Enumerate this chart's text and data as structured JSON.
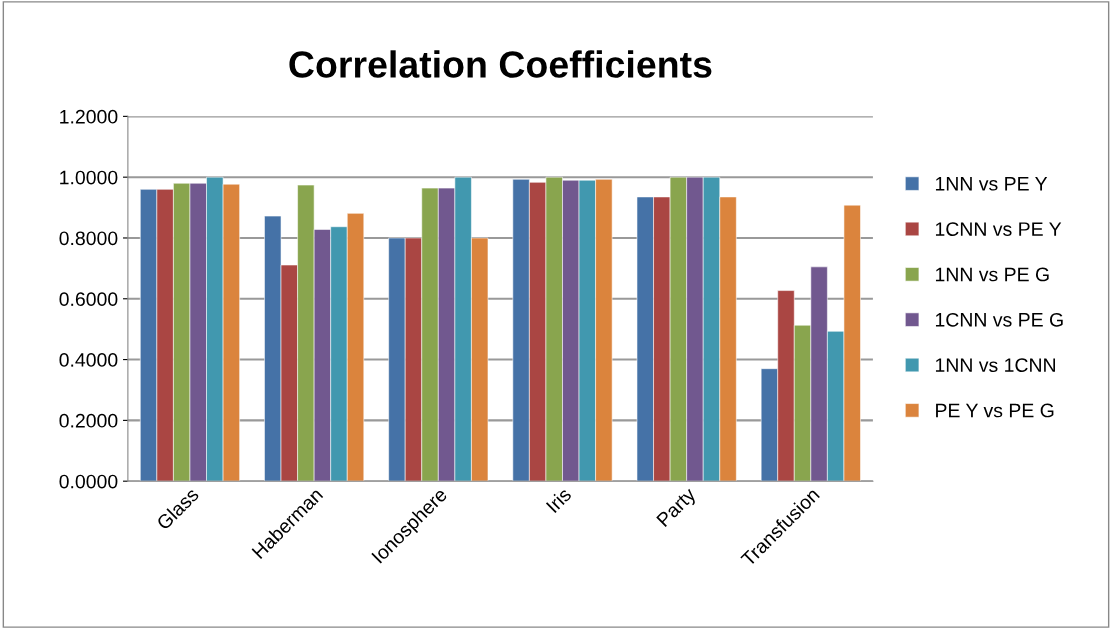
{
  "chart_data": {
    "type": "bar",
    "title": "Correlation Coefficients",
    "categories": [
      "Glass",
      "Haberman",
      "Ionosphere",
      "Iris",
      "Party",
      "Transfusion"
    ],
    "series": [
      {
        "name": "1NN vs PE Y",
        "color": "#4572a7",
        "values": [
          0.96,
          0.872,
          0.8,
          0.993,
          0.935,
          0.37
        ]
      },
      {
        "name": "1CNN vs PE Y",
        "color": "#aa4643",
        "values": [
          0.96,
          0.711,
          0.8,
          0.983,
          0.935,
          0.627
        ]
      },
      {
        "name": "1NN vs PE G",
        "color": "#89a54e",
        "values": [
          0.98,
          0.974,
          0.964,
          1.0,
          1.0,
          0.513
        ]
      },
      {
        "name": "1CNN vs PE G",
        "color": "#71588f",
        "values": [
          0.98,
          0.828,
          0.964,
          0.99,
          1.0,
          0.705
        ]
      },
      {
        "name": "1NN vs 1CNN",
        "color": "#4198af",
        "values": [
          1.0,
          0.837,
          1.0,
          0.99,
          1.0,
          0.493
        ]
      },
      {
        "name": "PE Y vs PE G",
        "color": "#db843d",
        "values": [
          0.977,
          0.881,
          0.8,
          0.993,
          0.935,
          0.908
        ]
      }
    ],
    "ylim": [
      0,
      1.2
    ],
    "yticks": [
      {
        "value": 0,
        "label": "0.0000"
      },
      {
        "value": 0.2,
        "label": "0.2000"
      },
      {
        "value": 0.4,
        "label": "0.4000"
      },
      {
        "value": 0.6,
        "label": "0.6000"
      },
      {
        "value": 0.8,
        "label": "0.8000"
      },
      {
        "value": 1.0,
        "label": "1.0000"
      },
      {
        "value": 1.2,
        "label": "1.2000"
      }
    ],
    "grid": "y",
    "legend": "right"
  }
}
